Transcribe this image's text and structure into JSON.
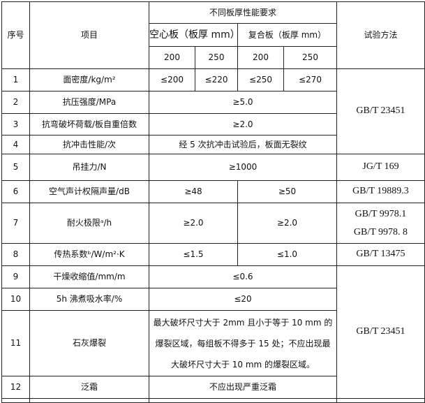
{
  "header": {
    "no": "序号",
    "item": "项目",
    "requirements": "不同板厚性能要求",
    "hollow": "空心板（板厚 mm）",
    "composite": "复合板（板厚 mm）",
    "method": "试验方法",
    "thickness": [
      "200",
      "250",
      "200",
      "250"
    ]
  },
  "rows": [
    {
      "no": "1",
      "item": "面密度/kg/m²",
      "values": [
        "≤200",
        "≤220",
        "≤250",
        "≤270"
      ]
    },
    {
      "no": "2",
      "item": "抗压强度/MPa",
      "value": "≥5.0"
    },
    {
      "no": "3",
      "item": "抗弯破坏荷载/板自重倍数",
      "value": "≥2.0"
    },
    {
      "no": "4",
      "item": "抗冲击性能/次",
      "value": "经 5 次抗冲击试验后，板面无裂纹"
    },
    {
      "no": "5",
      "item": "吊挂力/N",
      "value": "≥1000",
      "method": "JG/T 169"
    },
    {
      "no": "6",
      "item": "空气声计权隔声量/dB",
      "hollow": "≥48",
      "composite": "≥50",
      "method": "GB/T 19889.3"
    },
    {
      "no": "7",
      "item": "耐火极限ᵃ/h",
      "hollow": "≥2.0",
      "composite": "≥2.0",
      "method": [
        "GB/T 9978.1",
        "GB/T 9978. 8"
      ]
    },
    {
      "no": "8",
      "item": "传热系数ᵇ/W/m²·K",
      "hollow": "≤1.5",
      "composite": "≤1.0",
      "method": "GB/T 13475"
    },
    {
      "no": "9",
      "item": "干燥收缩值/mm/m",
      "value": "≤0.6"
    },
    {
      "no": "10",
      "item": "5h 沸煮吸水率/%",
      "value": "≤20"
    },
    {
      "no": "11",
      "item": "石灰爆裂",
      "value": "最大破坏尺寸大于 2mm 且小于等于 10 mm 的爆裂区域，每组板不得多于 15 处；不应出现最大破坏尺寸大于 10 mm 的爆裂区域。"
    },
    {
      "no": "12",
      "item": "泛霜",
      "value": "不应出现严重泛霜"
    }
  ],
  "methods": {
    "group1": "GB/T 23451",
    "group2": "GB/T 23451"
  }
}
